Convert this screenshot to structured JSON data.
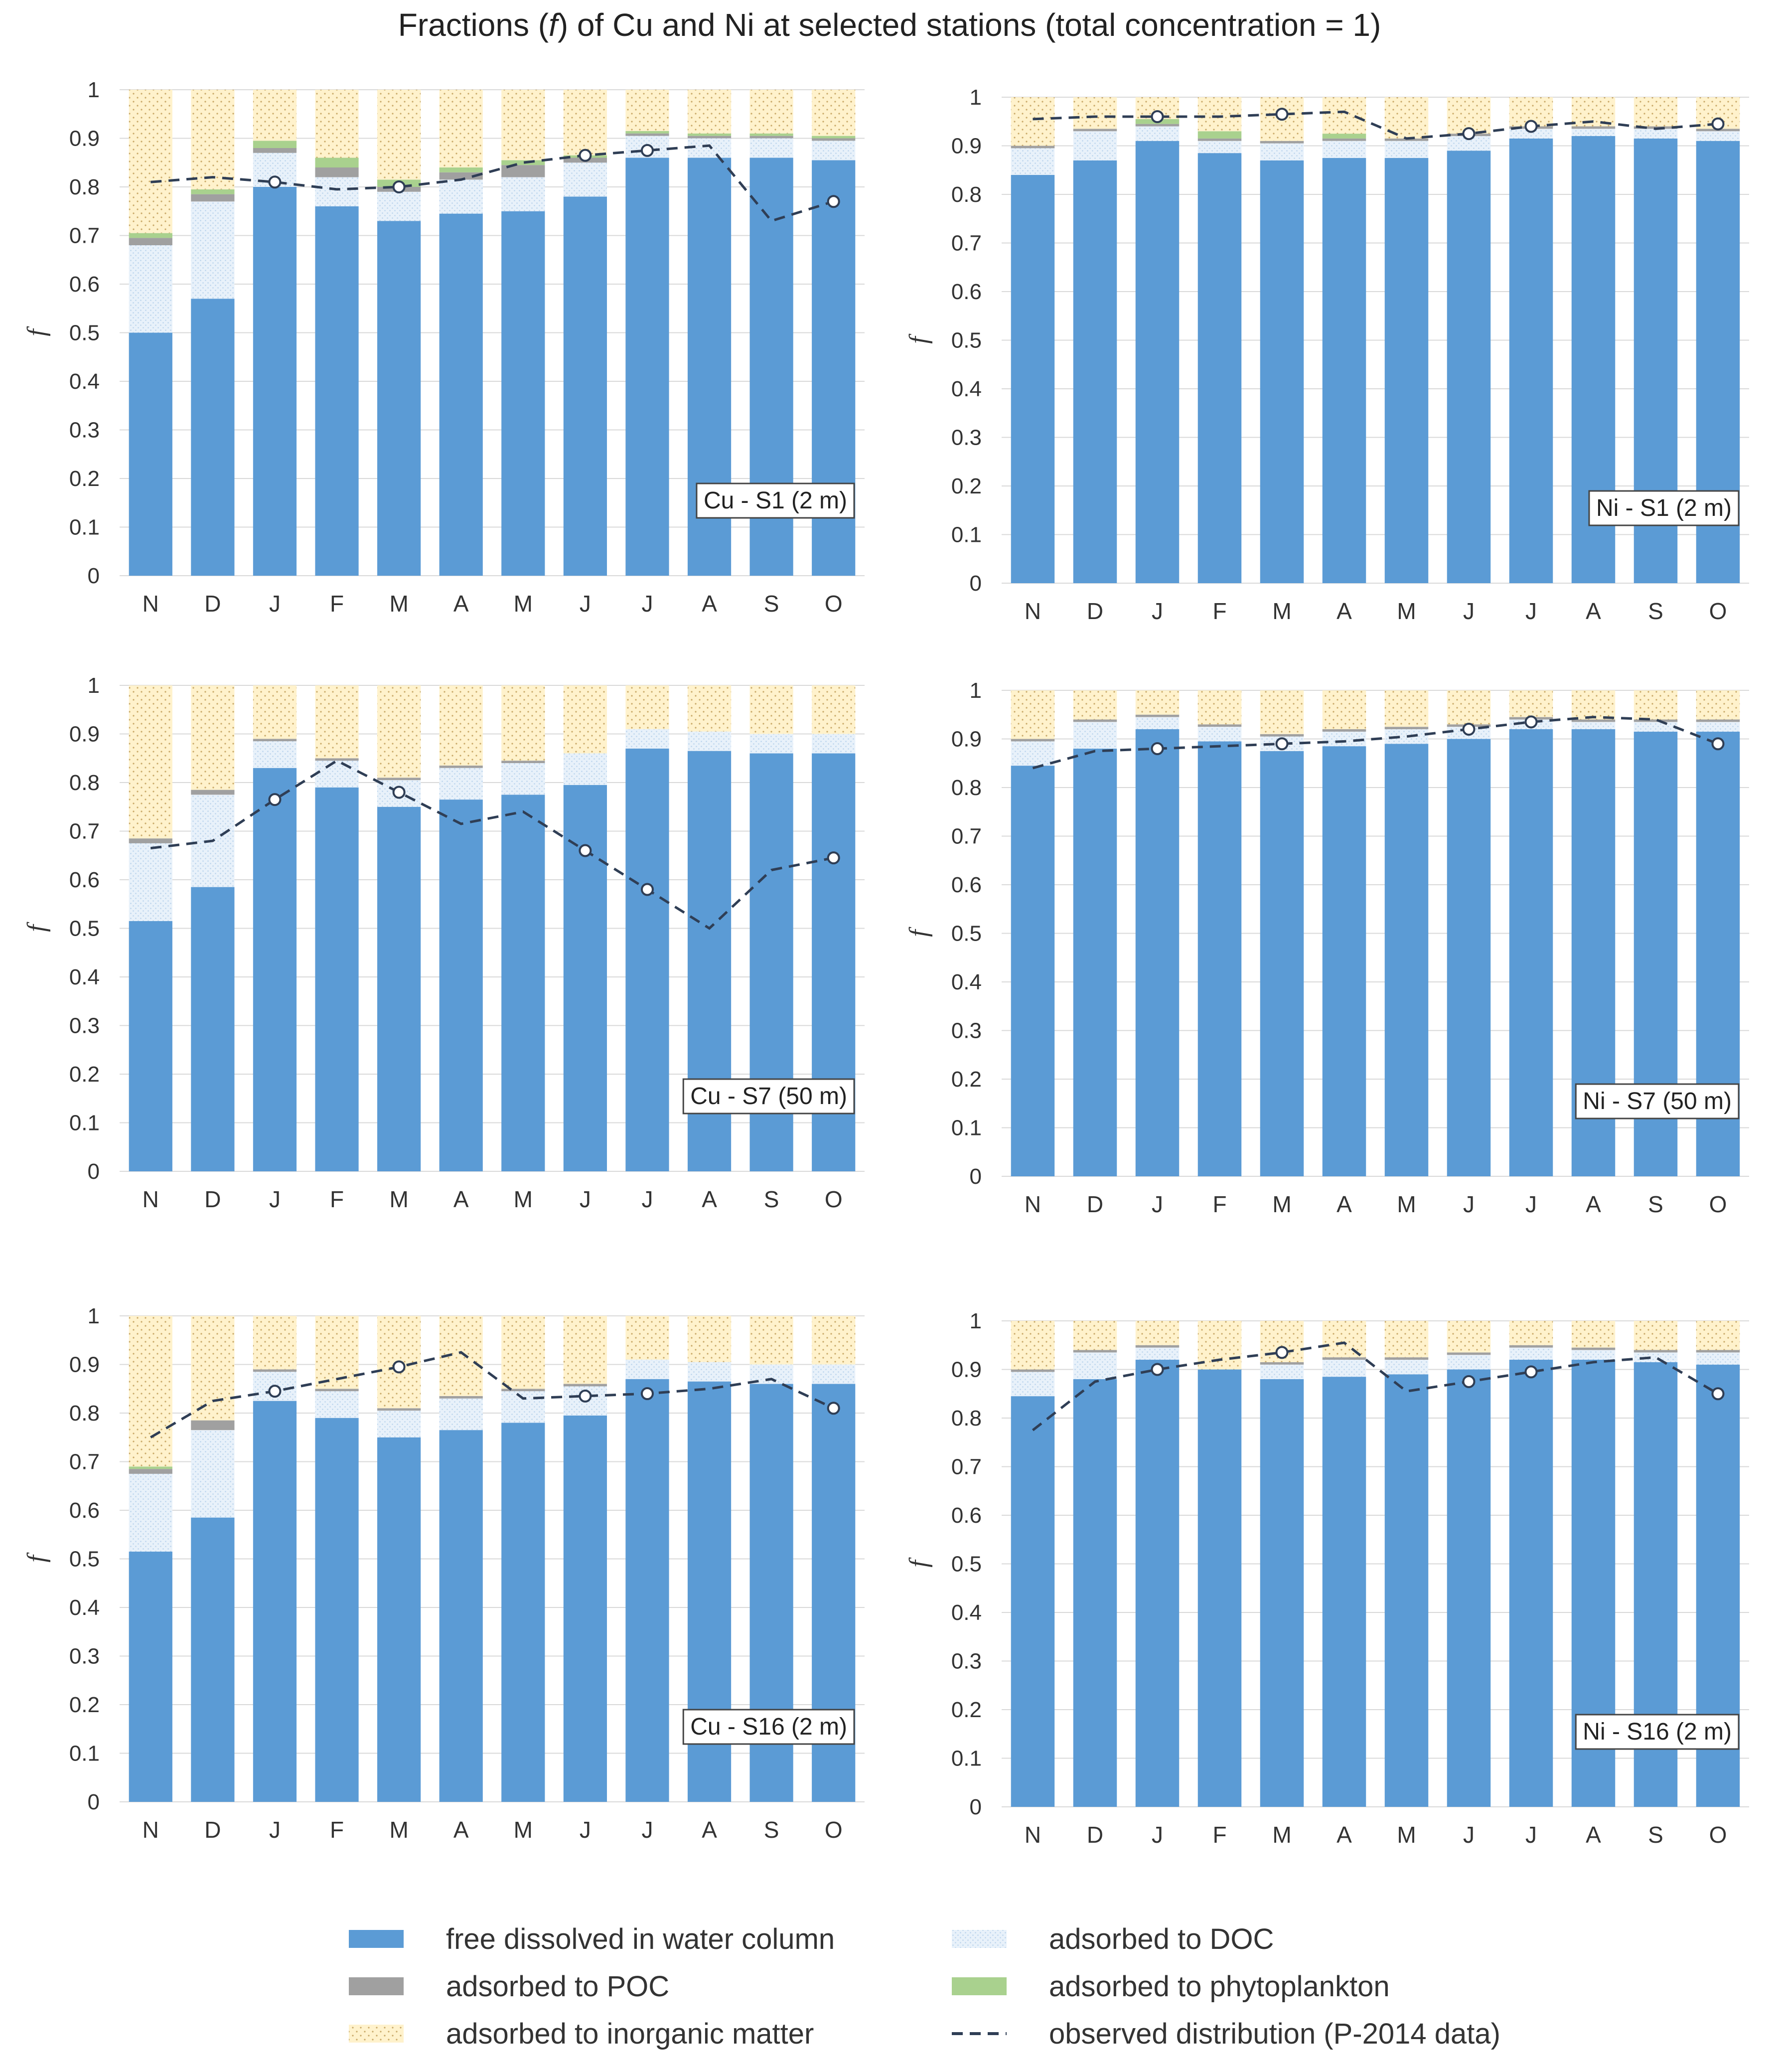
{
  "title": {
    "part1": "Fractions (",
    "italic": "f",
    "part2": ") of Cu and Ni at selected stations (total concentration = 1)"
  },
  "colors": {
    "free": "#5b9bd5",
    "doc_fill": "#e8f1fa",
    "doc_dot": "#b9d3ec",
    "poc": "#a0a0a0",
    "phyto": "#a9d18e",
    "inorg_fill": "#fff2cc",
    "inorg_dot": "#c9a968",
    "observed": "#2f3e55"
  },
  "legend": [
    {
      "key": "free",
      "label": "free dissolved in water column"
    },
    {
      "key": "doc",
      "label": "adsorbed to DOC"
    },
    {
      "key": "poc",
      "label": "adsorbed to POC"
    },
    {
      "key": "phyto",
      "label": "adsorbed to phytoplankton"
    },
    {
      "key": "inorg",
      "label": "adsorbed to inorganic matter"
    },
    {
      "key": "observed",
      "label": "observed distribution (P-2014 data)"
    }
  ],
  "chart_data": [
    {
      "type": "bar",
      "stacked": true,
      "label": "Cu - S1 (2 m)",
      "ylabel": "f",
      "ylim": [
        0,
        1
      ],
      "yticks": [
        "0",
        "0.1",
        "0.2",
        "0.3",
        "0.4",
        "0.5",
        "0.6",
        "0.7",
        "0.8",
        "0.9",
        "1"
      ],
      "categories": [
        "N",
        "D",
        "J",
        "F",
        "M",
        "A",
        "M",
        "J",
        "J",
        "A",
        "S",
        "O"
      ],
      "series": [
        {
          "key": "free",
          "values": [
            0.5,
            0.57,
            0.8,
            0.76,
            0.73,
            0.745,
            0.75,
            0.78,
            0.86,
            0.86,
            0.86,
            0.855
          ]
        },
        {
          "key": "doc",
          "values": [
            0.18,
            0.2,
            0.07,
            0.06,
            0.06,
            0.07,
            0.07,
            0.07,
            0.045,
            0.04,
            0.04,
            0.04
          ]
        },
        {
          "key": "poc",
          "values": [
            0.015,
            0.015,
            0.01,
            0.02,
            0.01,
            0.015,
            0.025,
            0.01,
            0.005,
            0.005,
            0.005,
            0.005
          ]
        },
        {
          "key": "phyto",
          "values": [
            0.01,
            0.01,
            0.015,
            0.02,
            0.015,
            0.01,
            0.01,
            0.005,
            0.005,
            0.005,
            0.005,
            0.005
          ]
        },
        {
          "key": "inorg",
          "values": [
            0.295,
            0.205,
            0.105,
            0.14,
            0.185,
            0.16,
            0.145,
            0.135,
            0.085,
            0.09,
            0.09,
            0.095
          ]
        }
      ],
      "observed": [
        0.81,
        0.82,
        0.81,
        0.795,
        0.8,
        0.815,
        0.85,
        0.865,
        0.875,
        0.885,
        0.73,
        0.77
      ],
      "observed_markers": [
        false,
        false,
        true,
        false,
        true,
        false,
        false,
        true,
        true,
        false,
        false,
        true
      ]
    },
    {
      "type": "bar",
      "stacked": true,
      "label": "Ni - S1 (2 m)",
      "ylabel": "f",
      "ylim": [
        0,
        1
      ],
      "yticks": [
        "0",
        "0.1",
        "0.2",
        "0.3",
        "0.4",
        "0.5",
        "0.6",
        "0.7",
        "0.8",
        "0.9",
        "1"
      ],
      "categories": [
        "N",
        "D",
        "J",
        "F",
        "M",
        "A",
        "M",
        "J",
        "J",
        "A",
        "S",
        "O"
      ],
      "series": [
        {
          "key": "free",
          "values": [
            0.84,
            0.87,
            0.91,
            0.885,
            0.87,
            0.875,
            0.875,
            0.89,
            0.915,
            0.92,
            0.915,
            0.91
          ]
        },
        {
          "key": "doc",
          "values": [
            0.055,
            0.06,
            0.03,
            0.025,
            0.035,
            0.035,
            0.035,
            0.03,
            0.02,
            0.015,
            0.02,
            0.02
          ]
        },
        {
          "key": "poc",
          "values": [
            0.005,
            0.005,
            0.005,
            0.005,
            0.005,
            0.005,
            0.005,
            0.005,
            0.005,
            0.005,
            0.005,
            0.005
          ]
        },
        {
          "key": "phyto",
          "values": [
            0.0,
            0.0,
            0.01,
            0.015,
            0.0,
            0.01,
            0.0,
            0.0,
            0.0,
            0.0,
            0.0,
            0.0
          ]
        },
        {
          "key": "inorg",
          "values": [
            0.1,
            0.065,
            0.045,
            0.07,
            0.09,
            0.075,
            0.085,
            0.075,
            0.06,
            0.06,
            0.06,
            0.065
          ]
        }
      ],
      "observed": [
        0.955,
        0.96,
        0.96,
        0.96,
        0.965,
        0.97,
        0.915,
        0.925,
        0.94,
        0.95,
        0.935,
        0.945
      ],
      "observed_markers": [
        false,
        false,
        true,
        false,
        true,
        false,
        false,
        true,
        true,
        false,
        false,
        true
      ]
    },
    {
      "type": "bar",
      "stacked": true,
      "label": "Cu - S7 (50 m)",
      "ylabel": "f",
      "ylim": [
        0,
        1
      ],
      "yticks": [
        "0",
        "0.1",
        "0.2",
        "0.3",
        "0.4",
        "0.5",
        "0.6",
        "0.7",
        "0.8",
        "0.9",
        "1"
      ],
      "categories": [
        "N",
        "D",
        "J",
        "F",
        "M",
        "A",
        "M",
        "J",
        "J",
        "A",
        "S",
        "O"
      ],
      "series": [
        {
          "key": "free",
          "values": [
            0.515,
            0.585,
            0.83,
            0.79,
            0.75,
            0.765,
            0.775,
            0.795,
            0.87,
            0.865,
            0.86,
            0.86
          ]
        },
        {
          "key": "doc",
          "values": [
            0.16,
            0.19,
            0.055,
            0.055,
            0.055,
            0.065,
            0.065,
            0.065,
            0.04,
            0.04,
            0.04,
            0.04
          ]
        },
        {
          "key": "poc",
          "values": [
            0.01,
            0.01,
            0.005,
            0.005,
            0.005,
            0.005,
            0.005,
            0.0,
            0.0,
            0.0,
            0.0,
            0.0
          ]
        },
        {
          "key": "phyto",
          "values": [
            0.0,
            0.0,
            0.0,
            0.0,
            0.0,
            0.0,
            0.0,
            0.0,
            0.0,
            0.0,
            0.0,
            0.0
          ]
        },
        {
          "key": "inorg",
          "values": [
            0.315,
            0.215,
            0.11,
            0.15,
            0.19,
            0.165,
            0.155,
            0.14,
            0.09,
            0.095,
            0.1,
            0.1
          ]
        }
      ],
      "observed": [
        0.665,
        0.68,
        0.765,
        0.845,
        0.78,
        0.715,
        0.74,
        0.66,
        0.58,
        0.5,
        0.62,
        0.645
      ],
      "observed_markers": [
        false,
        false,
        true,
        false,
        true,
        false,
        false,
        true,
        true,
        false,
        false,
        true
      ]
    },
    {
      "type": "bar",
      "stacked": true,
      "label": "Ni - S7 (50 m)",
      "ylabel": "f",
      "ylim": [
        0,
        1
      ],
      "yticks": [
        "0",
        "0.1",
        "0.2",
        "0.3",
        "0.4",
        "0.5",
        "0.6",
        "0.7",
        "0.8",
        "0.9",
        "1"
      ],
      "categories": [
        "N",
        "D",
        "J",
        "F",
        "M",
        "A",
        "M",
        "J",
        "J",
        "A",
        "S",
        "O"
      ],
      "series": [
        {
          "key": "free",
          "values": [
            0.845,
            0.88,
            0.92,
            0.895,
            0.875,
            0.885,
            0.89,
            0.9,
            0.92,
            0.92,
            0.915,
            0.915
          ]
        },
        {
          "key": "doc",
          "values": [
            0.05,
            0.055,
            0.025,
            0.03,
            0.03,
            0.03,
            0.03,
            0.025,
            0.02,
            0.015,
            0.02,
            0.02
          ]
        },
        {
          "key": "poc",
          "values": [
            0.005,
            0.005,
            0.005,
            0.005,
            0.005,
            0.005,
            0.005,
            0.005,
            0.005,
            0.005,
            0.005,
            0.005
          ]
        },
        {
          "key": "phyto",
          "values": [
            0.0,
            0.0,
            0.0,
            0.0,
            0.0,
            0.0,
            0.0,
            0.0,
            0.0,
            0.0,
            0.0,
            0.0
          ]
        },
        {
          "key": "inorg",
          "values": [
            0.1,
            0.06,
            0.05,
            0.07,
            0.09,
            0.08,
            0.075,
            0.07,
            0.055,
            0.06,
            0.06,
            0.06
          ]
        }
      ],
      "observed": [
        0.84,
        0.875,
        0.88,
        0.885,
        0.89,
        0.895,
        0.905,
        0.92,
        0.935,
        0.945,
        0.94,
        0.89
      ],
      "observed_markers": [
        false,
        false,
        true,
        false,
        true,
        false,
        false,
        true,
        true,
        false,
        false,
        true
      ]
    },
    {
      "type": "bar",
      "stacked": true,
      "label": "Cu - S16 (2 m)",
      "ylabel": "f",
      "ylim": [
        0,
        1
      ],
      "yticks": [
        "0",
        "0.1",
        "0.2",
        "0.3",
        "0.4",
        "0.5",
        "0.6",
        "0.7",
        "0.8",
        "0.9",
        "1"
      ],
      "categories": [
        "N",
        "D",
        "J",
        "F",
        "M",
        "A",
        "M",
        "J",
        "J",
        "A",
        "S",
        "O"
      ],
      "series": [
        {
          "key": "free",
          "values": [
            0.515,
            0.585,
            0.825,
            0.79,
            0.75,
            0.765,
            0.78,
            0.795,
            0.87,
            0.865,
            0.86,
            0.86
          ]
        },
        {
          "key": "doc",
          "values": [
            0.16,
            0.18,
            0.06,
            0.055,
            0.055,
            0.065,
            0.065,
            0.06,
            0.04,
            0.04,
            0.04,
            0.04
          ]
        },
        {
          "key": "poc",
          "values": [
            0.01,
            0.02,
            0.005,
            0.005,
            0.005,
            0.005,
            0.005,
            0.005,
            0.0,
            0.0,
            0.0,
            0.0
          ]
        },
        {
          "key": "phyto",
          "values": [
            0.005,
            0.0,
            0.0,
            0.0,
            0.0,
            0.0,
            0.0,
            0.0,
            0.0,
            0.0,
            0.0,
            0.0
          ]
        },
        {
          "key": "inorg",
          "values": [
            0.31,
            0.215,
            0.11,
            0.15,
            0.19,
            0.165,
            0.15,
            0.14,
            0.09,
            0.095,
            0.1,
            0.1
          ]
        }
      ],
      "observed": [
        0.75,
        0.825,
        0.845,
        0.87,
        0.895,
        0.925,
        0.83,
        0.835,
        0.84,
        0.85,
        0.87,
        0.81
      ],
      "observed_markers": [
        false,
        false,
        true,
        false,
        true,
        false,
        false,
        true,
        true,
        false,
        false,
        true
      ]
    },
    {
      "type": "bar",
      "stacked": true,
      "label": "Ni - S16 (2 m)",
      "ylabel": "f",
      "ylim": [
        0,
        1
      ],
      "yticks": [
        "0",
        "0.1",
        "0.2",
        "0.3",
        "0.4",
        "0.5",
        "0.6",
        "0.7",
        "0.8",
        "0.9",
        "1"
      ],
      "categories": [
        "N",
        "D",
        "J",
        "F",
        "M",
        "A",
        "M",
        "J",
        "J",
        "A",
        "S",
        "O"
      ],
      "series": [
        {
          "key": "free",
          "values": [
            0.845,
            0.88,
            0.92,
            0.9,
            0.88,
            0.885,
            0.89,
            0.9,
            0.92,
            0.92,
            0.915,
            0.91
          ]
        },
        {
          "key": "doc",
          "values": [
            0.05,
            0.055,
            0.025,
            0.0,
            0.03,
            0.035,
            0.03,
            0.03,
            0.025,
            0.02,
            0.02,
            0.025
          ]
        },
        {
          "key": "poc",
          "values": [
            0.005,
            0.005,
            0.005,
            0.0,
            0.005,
            0.005,
            0.005,
            0.005,
            0.005,
            0.005,
            0.005,
            0.005
          ]
        },
        {
          "key": "phyto",
          "values": [
            0.0,
            0.0,
            0.0,
            0.0,
            0.0,
            0.0,
            0.0,
            0.0,
            0.0,
            0.0,
            0.0,
            0.0
          ]
        },
        {
          "key": "inorg",
          "values": [
            0.1,
            0.06,
            0.05,
            0.1,
            0.085,
            0.075,
            0.075,
            0.065,
            0.05,
            0.055,
            0.06,
            0.06
          ]
        }
      ],
      "observed": [
        0.775,
        0.875,
        0.9,
        0.92,
        0.935,
        0.955,
        0.855,
        0.875,
        0.895,
        0.915,
        0.925,
        0.85
      ],
      "observed_markers": [
        false,
        false,
        true,
        false,
        true,
        false,
        false,
        true,
        true,
        false,
        false,
        true
      ]
    }
  ]
}
